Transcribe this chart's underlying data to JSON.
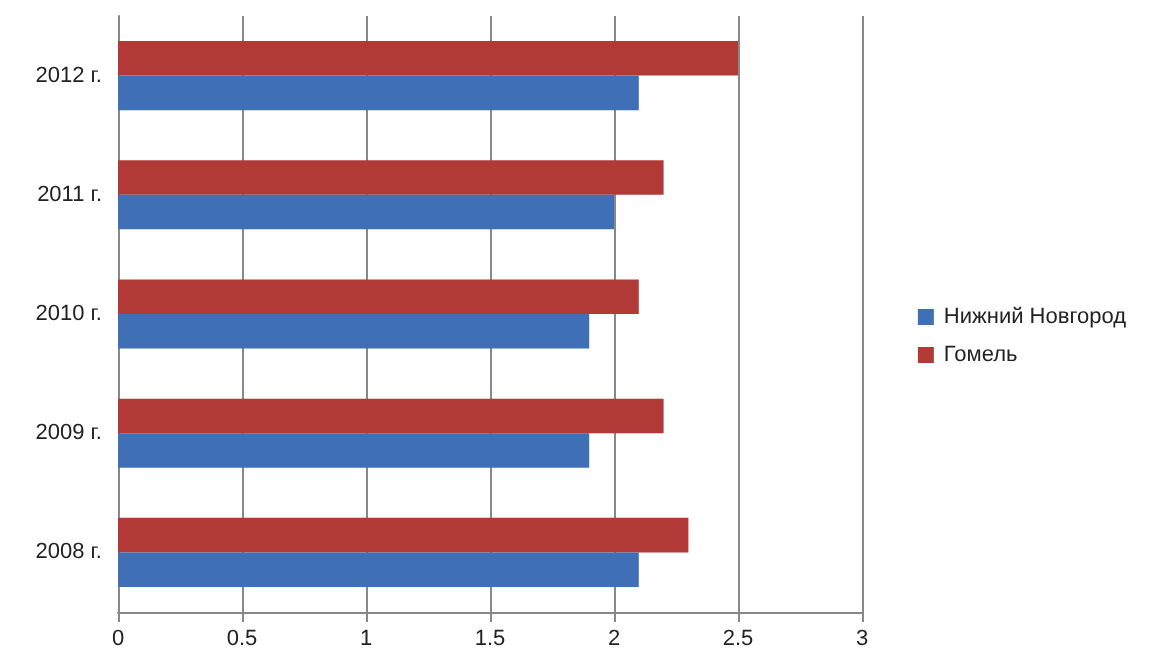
{
  "chart_data": {
    "type": "bar",
    "orientation": "horizontal",
    "categories": [
      "2012 г.",
      "2011 г.",
      "2010 г.",
      "2009 г.",
      "2008 г."
    ],
    "series": [
      {
        "name": "Нижний Новгород",
        "color": "#3f6fb5",
        "values": [
          2.1,
          2.0,
          1.9,
          1.9,
          2.1
        ]
      },
      {
        "name": "Гомель",
        "color": "#b23a36",
        "values": [
          2.5,
          2.2,
          2.1,
          2.2,
          2.3
        ]
      }
    ],
    "xlim": [
      0,
      3
    ],
    "xticks": [
      0,
      0.5,
      1,
      1.5,
      2,
      2.5,
      3
    ],
    "grid": "x",
    "legend": "right"
  }
}
